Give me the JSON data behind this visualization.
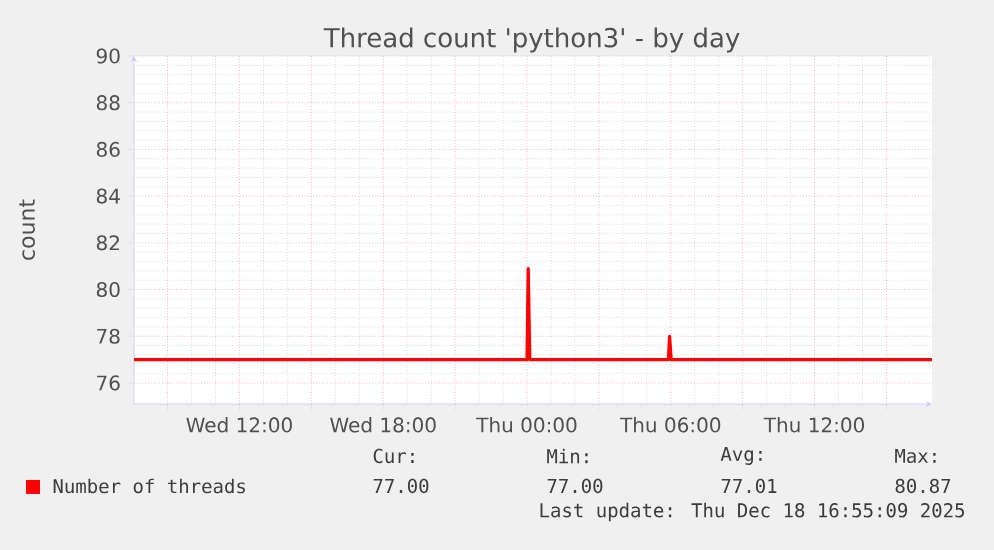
{
  "chart_data": {
    "type": "line",
    "title": "Thread count 'python3' - by day",
    "ylabel": "count",
    "x": [
      "2025-12-17T07:36",
      "2025-12-18T00:00",
      "2025-12-18T00:03",
      "2025-12-18T00:07",
      "2025-12-18T05:54",
      "2025-12-18T05:57",
      "2025-12-18T06:01",
      "2025-12-18T16:54"
    ],
    "series": [
      {
        "name": "Number of threads",
        "color": "#ff0000",
        "values": [
          77,
          77,
          80.9,
          77,
          77,
          78.0,
          77,
          77
        ]
      }
    ],
    "xlim": [
      "2025-12-17T07:36",
      "2025-12-18T16:54"
    ],
    "xticks": [
      {
        "value": "2025-12-17T09:00",
        "label": null
      },
      {
        "value": "2025-12-17T12:00",
        "label": "Wed 12:00"
      },
      {
        "value": "2025-12-17T15:00",
        "label": null
      },
      {
        "value": "2025-12-17T18:00",
        "label": "Wed 18:00"
      },
      {
        "value": "2025-12-17T21:00",
        "label": null
      },
      {
        "value": "2025-12-18T00:00",
        "label": "Thu 00:00"
      },
      {
        "value": "2025-12-18T03:00",
        "label": null
      },
      {
        "value": "2025-12-18T06:00",
        "label": "Thu 06:00"
      },
      {
        "value": "2025-12-18T09:00",
        "label": null
      },
      {
        "value": "2025-12-18T12:00",
        "label": "Thu 12:00"
      },
      {
        "value": "2025-12-18T15:00",
        "label": null
      }
    ],
    "ylim": [
      75.1,
      90
    ],
    "yticks": [
      76,
      78,
      80,
      82,
      84,
      86,
      88,
      90
    ],
    "grid": true,
    "legend": "bottom left",
    "marker": "none",
    "line_style": "solid",
    "annotations": [
      "Cur:",
      "77.00",
      "Min:",
      "77.00",
      "Avg:",
      "77.01",
      "Max:",
      "80.87",
      "Last update: Thu Dec 18 16:55:09 2025"
    ]
  }
}
